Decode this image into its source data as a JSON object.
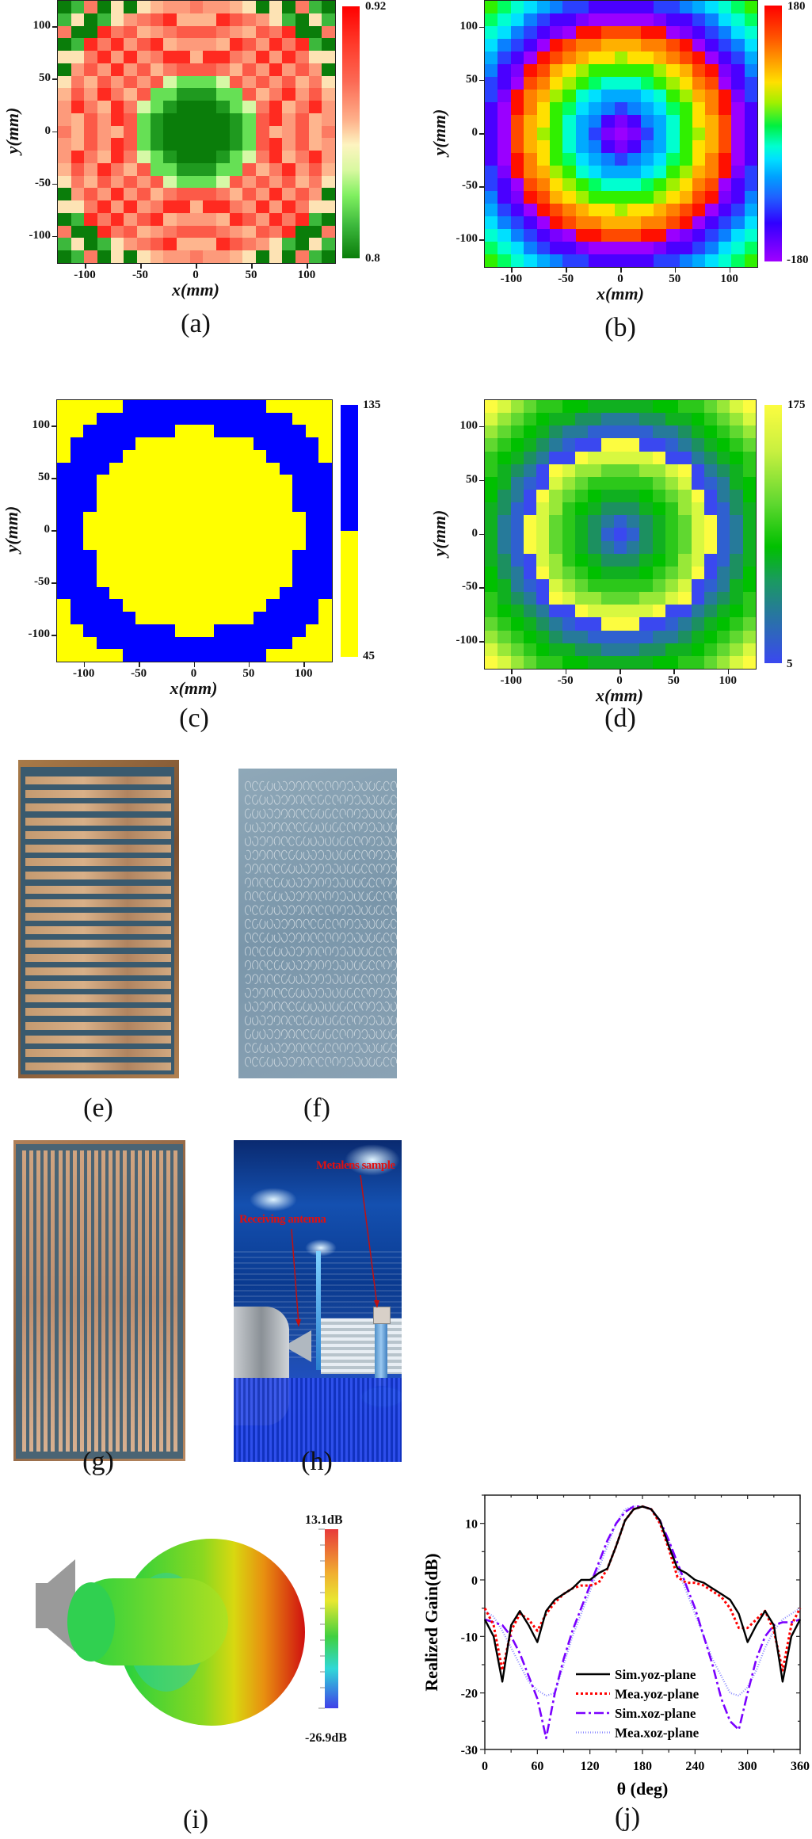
{
  "figure": {
    "panels": [
      "(a)",
      "(b)",
      "(c)",
      "(d)",
      "(e)",
      "(f)",
      "(g)",
      "(h)",
      "(i)",
      "(j)"
    ]
  },
  "heatmap_axes": {
    "xlabel": "x(mm)",
    "ylabel": "y(mm)",
    "x_ticks": [
      "-100",
      "-50",
      "0",
      "50",
      "100"
    ],
    "y_ticks": [
      "100",
      "50",
      "0",
      "-50",
      "-100"
    ]
  },
  "panel_a": {
    "caption": "(a)",
    "cbar_max": "0.92",
    "cbar_min": "0.8",
    "palette": [
      "#0a7d0a",
      "#1f9a1f",
      "#3cb83c",
      "#66e055",
      "#d6f8a6",
      "#fde3b4",
      "#feb58e",
      "#fd9a7b",
      "#fc7a62",
      "#fc5a48",
      "#ff2a20"
    ]
  },
  "panel_b": {
    "caption": "(b)",
    "cbar_max": "180",
    "cbar_min": "-180",
    "palette": [
      "#9a00ff",
      "#7a00ff",
      "#4a00ff",
      "#2a40ff",
      "#0a80ff",
      "#00aaff",
      "#00e0ff",
      "#00ffd0",
      "#00ff60",
      "#30f000",
      "#a0f000",
      "#ffe000",
      "#ffb000",
      "#ff8000",
      "#ff4a00",
      "#ff1000"
    ]
  },
  "panel_c": {
    "caption": "(c)",
    "cbar_max": "135",
    "cbar_min": "45",
    "colors": {
      "Y": "#ffff00",
      "B": "#0000ff"
    },
    "grid": [
      "YYYYYBBBBBBBBBBBYYYYY",
      "YYYBBBBBBBBBBBBBBBYYY",
      "YYBBBBBBBYYYBBBBBBBYY",
      "YBBBBBYYYYYYYYYBBBBBY",
      "YBBBBYYYYYYYYYYYBBBBY",
      "BBBBYYYYYYYYYYYYYBBBB",
      "BBBYYYYYYYYYYYYYYYBBB",
      "BBBYYYYYYYYYYYYYYYBBB",
      "BBBYYYYYYYYYYYYYYYBBB",
      "BBYYYYYYYYYYYYYYYYYBB",
      "BBYYYYYYYYYYYYYYYYYBB",
      "BBYYYYYYYYYYYYYYYYYBB",
      "BBBYYYYYYYYYYYYYYYBBB",
      "BBBYYYYYYYYYYYYYYYBBB",
      "BBBYYYYYYYYYYYYYYYBBB",
      "BBBBYYYYYYYYYYYYYBBBB",
      "YBBBBYYYYYYYYYYYBBBBY",
      "YBBBBBYYYYYYYYYBBBBBY",
      "YYBBBBBBBYYYBBBBBBBYY",
      "YYYBBBBBBBBBBBBBBBYYY",
      "YYYYYBBBBBBBBBBBYYYYY"
    ]
  },
  "panel_d": {
    "caption": "(d)",
    "cbar_max": "175",
    "cbar_min": "5",
    "palette": [
      "#3a48f0",
      "#2f60d0",
      "#267a9a",
      "#1c9060",
      "#10b020",
      "#00c000",
      "#2cc81a",
      "#60d830",
      "#98e838",
      "#d8f840",
      "#fcfc40"
    ]
  },
  "panel_e": {
    "caption": "(e)",
    "strip_count": 22,
    "orientation": "horizontal"
  },
  "panel_f": {
    "caption": "(f)",
    "rows": 21,
    "cols": 21
  },
  "panel_g": {
    "caption": "(g)",
    "strip_count": 22,
    "orientation": "vertical"
  },
  "panel_h": {
    "caption": "(h)",
    "label_metalens": "Metalens sample",
    "label_receiving": "Receiving antenna"
  },
  "panel_i": {
    "caption": "(i)",
    "scale_max": "13.1dB",
    "scale_min": "-26.9dB"
  },
  "panel_j": {
    "caption": "(j)"
  },
  "chart_data": [
    {
      "type": "heatmap",
      "title": "(a) transmission amplitude",
      "xlabel": "x(mm)",
      "ylabel": "y(mm)",
      "xlim": [
        -125,
        125
      ],
      "ylim": [
        -125,
        125
      ],
      "grid_size": [
        21,
        21
      ],
      "colorbar": {
        "min": 0.8,
        "max": 0.92,
        "colormap": "green-white-red"
      }
    },
    {
      "type": "heatmap",
      "title": "(b) phase distribution",
      "xlabel": "x(mm)",
      "ylabel": "y(mm)",
      "xlim": [
        -125,
        125
      ],
      "ylim": [
        -125,
        125
      ],
      "grid_size": [
        21,
        21
      ],
      "colorbar": {
        "min": -180,
        "max": 180,
        "colormap": "rainbow"
      }
    },
    {
      "type": "heatmap",
      "title": "(c) binary rotation",
      "xlabel": "x(mm)",
      "ylabel": "y(mm)",
      "xlim": [
        -125,
        125
      ],
      "ylim": [
        -125,
        125
      ],
      "grid_size": [
        21,
        21
      ],
      "colorbar": {
        "min": 45,
        "max": 135,
        "levels": [
          45,
          135
        ],
        "colors": [
          "#ffff00",
          "#0000ff"
        ]
      }
    },
    {
      "type": "heatmap",
      "title": "(d) rotation angle",
      "xlabel": "x(mm)",
      "ylabel": "y(mm)",
      "xlim": [
        -125,
        125
      ],
      "ylim": [
        -125,
        125
      ],
      "grid_size": [
        21,
        21
      ],
      "colorbar": {
        "min": 5,
        "max": 175,
        "colormap": "blue-green-yellow"
      }
    },
    {
      "type": "line",
      "title": "(j)",
      "xlabel": "θ (deg)",
      "ylabel": "Realized Gain(dB)",
      "xlim": [
        0,
        360
      ],
      "ylim": [
        -30,
        15
      ],
      "x_ticks": [
        0,
        60,
        120,
        180,
        240,
        300,
        360
      ],
      "y_ticks": [
        -30,
        -20,
        -10,
        0,
        10
      ],
      "legend_position": "lower center",
      "x": [
        0,
        10,
        20,
        30,
        40,
        50,
        60,
        70,
        80,
        90,
        100,
        110,
        120,
        130,
        140,
        150,
        160,
        170,
        180,
        190,
        200,
        210,
        220,
        230,
        240,
        250,
        260,
        270,
        280,
        290,
        300,
        310,
        320,
        330,
        340,
        350,
        360
      ],
      "series": [
        {
          "name": "Sim.yoz-plane",
          "style": "solid",
          "color": "#000000",
          "values": [
            -7,
            -10,
            -18,
            -8,
            -5.5,
            -8,
            -11,
            -5.5,
            -3.5,
            -2.5,
            -1.5,
            0,
            0,
            1.2,
            2,
            6,
            10.5,
            12.5,
            13,
            12.5,
            10.5,
            6,
            2,
            1.2,
            0,
            -0.5,
            -1.5,
            -2.5,
            -3.5,
            -6,
            -11,
            -8,
            -5.5,
            -8,
            -18,
            -10,
            -7
          ]
        },
        {
          "name": "Mea.yoz-plane",
          "style": "dotted",
          "color": "#ff0000",
          "values": [
            -5,
            -8,
            -16,
            -9,
            -6,
            -7,
            -9,
            -6,
            -4,
            -2.5,
            -1.5,
            -1,
            -1,
            -0.5,
            2,
            6,
            10.5,
            12.5,
            13,
            12.5,
            10,
            5.5,
            0.5,
            -0.5,
            -0.5,
            -1,
            -2,
            -3,
            -5,
            -8.5,
            -8.5,
            -7,
            -5.5,
            -9,
            -16,
            -8,
            -5
          ]
        },
        {
          "name": "Sim.xoz-plane",
          "style": "dashdot",
          "color": "#7a00ff",
          "values": [
            -7,
            -7.5,
            -8,
            -10,
            -13,
            -17,
            -21,
            -28,
            -20,
            -14,
            -9,
            -5,
            -1,
            3,
            7,
            10,
            12,
            13,
            13,
            12.5,
            10.5,
            7,
            3,
            -1,
            -5,
            -10,
            -15,
            -21,
            -25,
            -26.5,
            -20,
            -14,
            -10,
            -8,
            -7.5,
            -7.5,
            -7
          ]
        },
        {
          "name": "Mea.xoz-plane",
          "style": "dotted-light",
          "color": "#8a8aff",
          "values": [
            -5.5,
            -6.5,
            -9,
            -12,
            -15,
            -18,
            -19.5,
            -20.5,
            -20,
            -15,
            -10,
            -6,
            -2,
            2,
            6,
            10,
            12.5,
            13,
            13,
            12.5,
            10,
            7,
            2,
            -2,
            -6,
            -10,
            -14,
            -17,
            -20,
            -20.5,
            -19,
            -16,
            -12,
            -9,
            -7,
            -6,
            -5
          ]
        }
      ]
    }
  ]
}
